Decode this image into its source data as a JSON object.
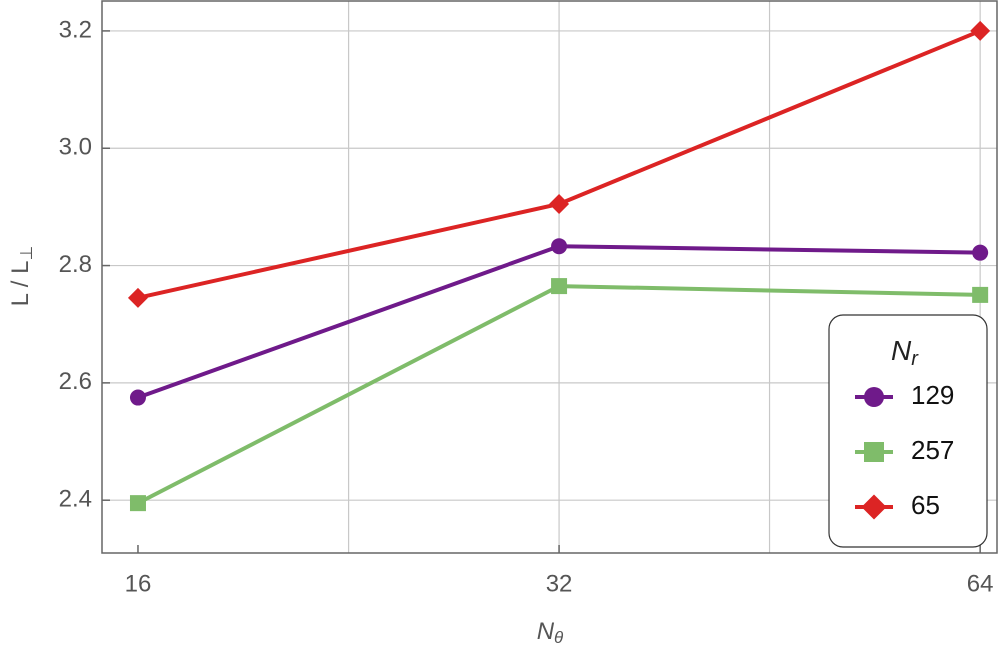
{
  "chart_data": {
    "type": "line",
    "x_label": {
      "main": "N",
      "sub": "θ"
    },
    "y_label": {
      "main": "L / L",
      "sub": "⊥"
    },
    "legend_title": {
      "main": "N",
      "sub": "r"
    },
    "x": [
      16,
      32,
      64
    ],
    "series": [
      {
        "name": "129",
        "color": "#6f1a8a",
        "marker": "circle",
        "values": [
          2.575,
          2.833,
          2.822
        ]
      },
      {
        "name": "257",
        "color": "#7fbc6a",
        "marker": "square",
        "values": [
          2.395,
          2.765,
          2.75
        ]
      },
      {
        "name": "65",
        "color": "#dc2424",
        "marker": "diamond",
        "values": [
          2.745,
          2.905,
          3.2
        ]
      }
    ],
    "xscale": "log",
    "xlim": [
      15.08,
      65.8
    ],
    "xticks": [
      16,
      32,
      64
    ],
    "xgrid": [
      22.63,
      32,
      45.25,
      64
    ],
    "ylim": [
      2.31,
      3.251
    ],
    "yticks": [
      {
        "value": 2.4,
        "label": "2.4"
      },
      {
        "value": 2.6,
        "label": "2.6"
      },
      {
        "value": 2.8,
        "label": "2.8"
      },
      {
        "value": 3.0,
        "label": "3.0"
      },
      {
        "value": 3.2,
        "label": "3.2"
      }
    ],
    "grid": true,
    "legend": "lower right"
  }
}
